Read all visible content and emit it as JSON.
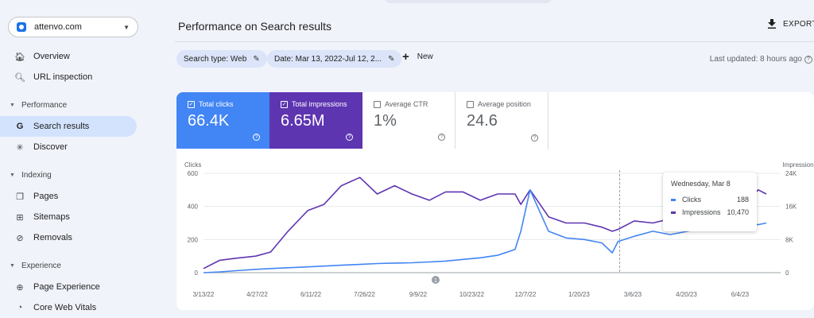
{
  "property": {
    "name": "attenvo.com"
  },
  "sidebar": {
    "items": [
      {
        "label": "Overview",
        "icon": "home-icon"
      },
      {
        "label": "URL inspection",
        "icon": "search-icon"
      }
    ],
    "sections": [
      {
        "label": "Performance",
        "items": [
          {
            "label": "Search results",
            "icon": "google-g-icon",
            "active": true
          },
          {
            "label": "Discover",
            "icon": "asterisk-icon"
          }
        ]
      },
      {
        "label": "Indexing",
        "items": [
          {
            "label": "Pages",
            "icon": "pages-icon"
          },
          {
            "label": "Sitemaps",
            "icon": "sitemap-icon"
          },
          {
            "label": "Removals",
            "icon": "removals-icon"
          }
        ]
      },
      {
        "label": "Experience",
        "items": [
          {
            "label": "Page Experience",
            "icon": "plus-circle-icon"
          },
          {
            "label": "Core Web Vitals",
            "icon": "gauge-icon"
          }
        ]
      }
    ]
  },
  "header": {
    "title": "Performance on Search results",
    "export_label": "EXPORT"
  },
  "filters": {
    "search_type": "Search type: Web",
    "date": "Date: Mar 13, 2022-Jul 12, 2...",
    "new_label": "New",
    "last_updated": "Last updated: 8 hours ago"
  },
  "metrics": [
    {
      "label": "Total clicks",
      "value": "66.4K",
      "checked": true
    },
    {
      "label": "Total impressions",
      "value": "6.65M",
      "checked": true
    },
    {
      "label": "Average CTR",
      "value": "1%",
      "checked": false
    },
    {
      "label": "Average position",
      "value": "24.6",
      "checked": false
    }
  ],
  "tooltip": {
    "date": "Wednesday, Mar 8",
    "rows": [
      {
        "label": "Clicks",
        "value": "188"
      },
      {
        "label": "Impressions",
        "value": "10,470"
      }
    ]
  },
  "colors": {
    "clicks": "#4285f4",
    "impressions": "#5e35b1",
    "active_nav": "#d3e3fd"
  },
  "chart_data": {
    "type": "line",
    "left_axis_label": "Clicks",
    "right_axis_label": "Impressions",
    "left_ticks": [
      "600",
      "400",
      "200",
      "0"
    ],
    "right_ticks": [
      "24K",
      "16K",
      "8K",
      "0"
    ],
    "x_ticks": [
      "3/13/22",
      "4/27/22",
      "6/11/22",
      "7/26/22",
      "9/9/22",
      "10/23/22",
      "12/7/22",
      "1/20/23",
      "3/6/23",
      "4/20/23",
      "6/4/23"
    ],
    "ylim_left": [
      0,
      600
    ],
    "ylim_right": [
      0,
      24000
    ],
    "annotation_marker": "1",
    "series": [
      {
        "name": "Clicks",
        "axis": "left",
        "x": [
          "3/13/22",
          "3/27/22",
          "4/10/22",
          "4/27/22",
          "5/10/22",
          "5/25/22",
          "6/11/22",
          "6/25/22",
          "7/10/22",
          "7/26/22",
          "8/10/22",
          "8/25/22",
          "9/9/22",
          "9/24/22",
          "10/8/22",
          "10/23/22",
          "11/7/22",
          "11/22/22",
          "12/7/22",
          "12/12/22",
          "12/20/22",
          "1/5/23",
          "1/20/23",
          "2/5/23",
          "2/20/23",
          "3/1/23",
          "3/6/23",
          "3/20/23",
          "4/5/23",
          "4/20/23",
          "5/5/23",
          "5/20/23",
          "6/4/23",
          "6/20/23",
          "7/5/23",
          "7/12/23"
        ],
        "values": [
          0,
          5,
          12,
          20,
          25,
          30,
          35,
          40,
          45,
          50,
          55,
          58,
          60,
          65,
          70,
          80,
          90,
          105,
          140,
          250,
          500,
          250,
          210,
          200,
          180,
          120,
          188,
          220,
          250,
          230,
          250,
          270,
          260,
          300,
          290,
          300
        ]
      },
      {
        "name": "Impressions",
        "axis": "right",
        "x": [
          "3/13/22",
          "3/27/22",
          "4/10/22",
          "4/27/22",
          "5/10/22",
          "5/25/22",
          "6/11/22",
          "6/25/22",
          "7/10/22",
          "7/26/22",
          "8/10/22",
          "8/25/22",
          "9/9/22",
          "9/24/22",
          "10/8/22",
          "10/23/22",
          "11/7/22",
          "11/22/22",
          "12/7/22",
          "12/12/22",
          "12/20/22",
          "1/5/23",
          "1/20/23",
          "2/5/23",
          "2/20/23",
          "3/1/23",
          "3/6/23",
          "3/20/23",
          "4/5/23",
          "4/20/23",
          "5/5/23",
          "5/20/23",
          "6/4/23",
          "6/20/23",
          "7/5/23",
          "7/12/23"
        ],
        "values": [
          1000,
          3000,
          3500,
          4000,
          5000,
          10000,
          15000,
          16500,
          21000,
          23000,
          19000,
          21000,
          19000,
          17500,
          19500,
          19500,
          17500,
          19000,
          19000,
          16500,
          20000,
          13500,
          12000,
          12000,
          11000,
          10000,
          10470,
          12500,
          12000,
          13000,
          16000,
          14000,
          15000,
          15500,
          20000,
          19000
        ]
      }
    ]
  }
}
